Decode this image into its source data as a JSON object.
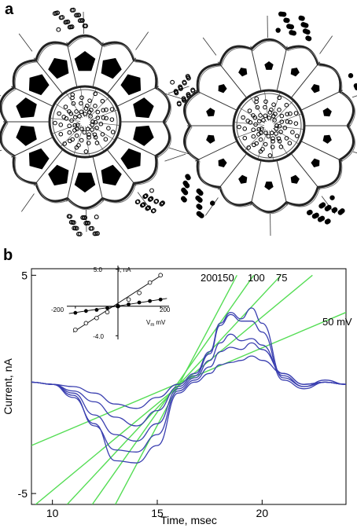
{
  "panel_a": {
    "label": "a"
  },
  "panel_b": {
    "label": "b"
  },
  "chart_data": [
    {
      "type": "line",
      "xlabel": "Time, msec",
      "ylabel": "Current, nA",
      "xlim": [
        9,
        24
      ],
      "ylim": [
        -5.5,
        5.3
      ],
      "x_ticks": [
        10,
        15,
        20
      ],
      "y_ticks": [
        5,
        -5
      ],
      "grid": false,
      "current_traces": {
        "color": "#3a3fb0",
        "count": 5,
        "x": [
          9,
          10,
          11,
          12,
          13,
          14,
          15,
          16,
          16.8,
          17.5,
          18,
          18.5,
          19,
          19.5,
          20,
          21,
          22,
          23,
          24
        ],
        "series": [
          {
            "values": [
              0.1,
              0,
              -0.1,
              -0.4,
              -0.9,
              -1.1,
              -0.6,
              0,
              0.5,
              1.5,
              2.8,
              3.3,
              3.0,
              3.5,
              2.8,
              0.3,
              -0.1,
              0.1,
              0
            ]
          },
          {
            "values": [
              0.1,
              0,
              -0.3,
              -0.8,
              -1.5,
              -1.9,
              -1.2,
              -0.1,
              0.4,
              1.4,
              2.7,
              3.2,
              2.9,
              2.9,
              2.4,
              0.2,
              -0.2,
              0.1,
              0
            ]
          },
          {
            "values": [
              0.1,
              0,
              -0.4,
              -1.4,
              -2.3,
              -2.6,
              -1.8,
              -0.2,
              0.3,
              1.1,
              1.9,
              2.3,
              2.0,
              2.1,
              1.8,
              0.4,
              -0.1,
              0.2,
              0
            ]
          },
          {
            "values": [
              0.1,
              0,
              -0.5,
              -1.9,
              -3.0,
              -3.1,
              -2.3,
              -0.3,
              0.2,
              0.8,
              1.5,
              1.7,
              1.6,
              1.9,
              1.6,
              0.5,
              0,
              0.1,
              0
            ]
          },
          {
            "values": [
              0.1,
              0,
              -0.6,
              -1.8,
              -3.5,
              -3.6,
              -2.8,
              -0.4,
              0.1,
              0.5,
              0.9,
              1.0,
              1.1,
              1.3,
              1.1,
              0.5,
              0,
              0.1,
              0
            ]
          }
        ]
      },
      "fit_lines": {
        "color": "#55dd55",
        "series": [
          {
            "name": "200",
            "x": [
              13.0,
              18.8
            ],
            "values": [
              -5.5,
              5.0
            ]
          },
          {
            "name": "150",
            "x": [
              11.9,
              19.6
            ],
            "values": [
              -5.5,
              5.0
            ]
          },
          {
            "name": "100",
            "x": [
              10.7,
              20.9
            ],
            "values": [
              -5.5,
              5.0
            ]
          },
          {
            "name": "75",
            "x": [
              9.2,
              22.4
            ],
            "values": [
              -5.5,
              5.0
            ]
          },
          {
            "name": "50 mV",
            "x": [
              9.0,
              24.0
            ],
            "values": [
              -2.8,
              3.3
            ]
          }
        ]
      }
    },
    {
      "type": "scatter",
      "title": "",
      "ylabel": "I, nA",
      "xlabel_main": "V",
      "xlabel_sub": "m",
      "xlabel_unit": "mV",
      "xlim": [
        -240,
        240
      ],
      "ylim": [
        -4.5,
        5.5
      ],
      "y_tick_labels": [
        "5.0",
        "-4.0"
      ],
      "x_tick_labels": [
        "-200",
        "200"
      ],
      "open_points": {
        "x": [
          -200,
          -150,
          -100,
          -50,
          0,
          50,
          100,
          150,
          200
        ],
        "values": [
          -3.2,
          -2.3,
          -1.6,
          -0.8,
          0,
          0.9,
          1.8,
          3.2,
          4.2
        ]
      },
      "filled_points": {
        "x": [
          -200,
          -150,
          -100,
          -50,
          0,
          50,
          100,
          150,
          200
        ],
        "values": [
          -0.9,
          -0.65,
          -0.5,
          -0.25,
          0,
          0.25,
          0.5,
          0.7,
          0.9
        ]
      },
      "fit_steep": {
        "x": [
          -210,
          210
        ],
        "values": [
          -3.5,
          4.3
        ]
      },
      "fit_shallow": {
        "x": [
          -230,
          230
        ],
        "values": [
          -1.0,
          1.05
        ]
      }
    }
  ]
}
